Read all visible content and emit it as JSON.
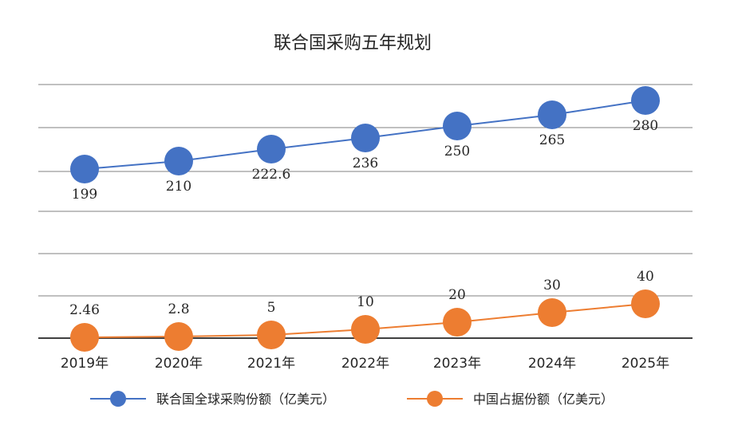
{
  "chart_data": {
    "type": "line",
    "title": "联合国采购五年规划",
    "categories": [
      "2019年",
      "2020年",
      "2021年",
      "2022年",
      "2023年",
      "2024年",
      "2025年"
    ],
    "series": [
      {
        "name": "联合国全球采购份额（亿美元）",
        "values": [
          199,
          210,
          222.6,
          236,
          250,
          265,
          280
        ],
        "labels": [
          "199",
          "210",
          "222.6",
          "236",
          "250",
          "265",
          "280"
        ],
        "color": "#4472C4"
      },
      {
        "name": "中国占据份额（亿美元）",
        "values": [
          2.46,
          2.8,
          5,
          10,
          20,
          30,
          40
        ],
        "labels": [
          "2.46",
          "2.8",
          "5",
          "10",
          "20",
          "30",
          "40"
        ],
        "color": "#ED7D31"
      }
    ],
    "ylim": [
      0,
      300
    ],
    "grid": true,
    "legend": "bottom"
  }
}
